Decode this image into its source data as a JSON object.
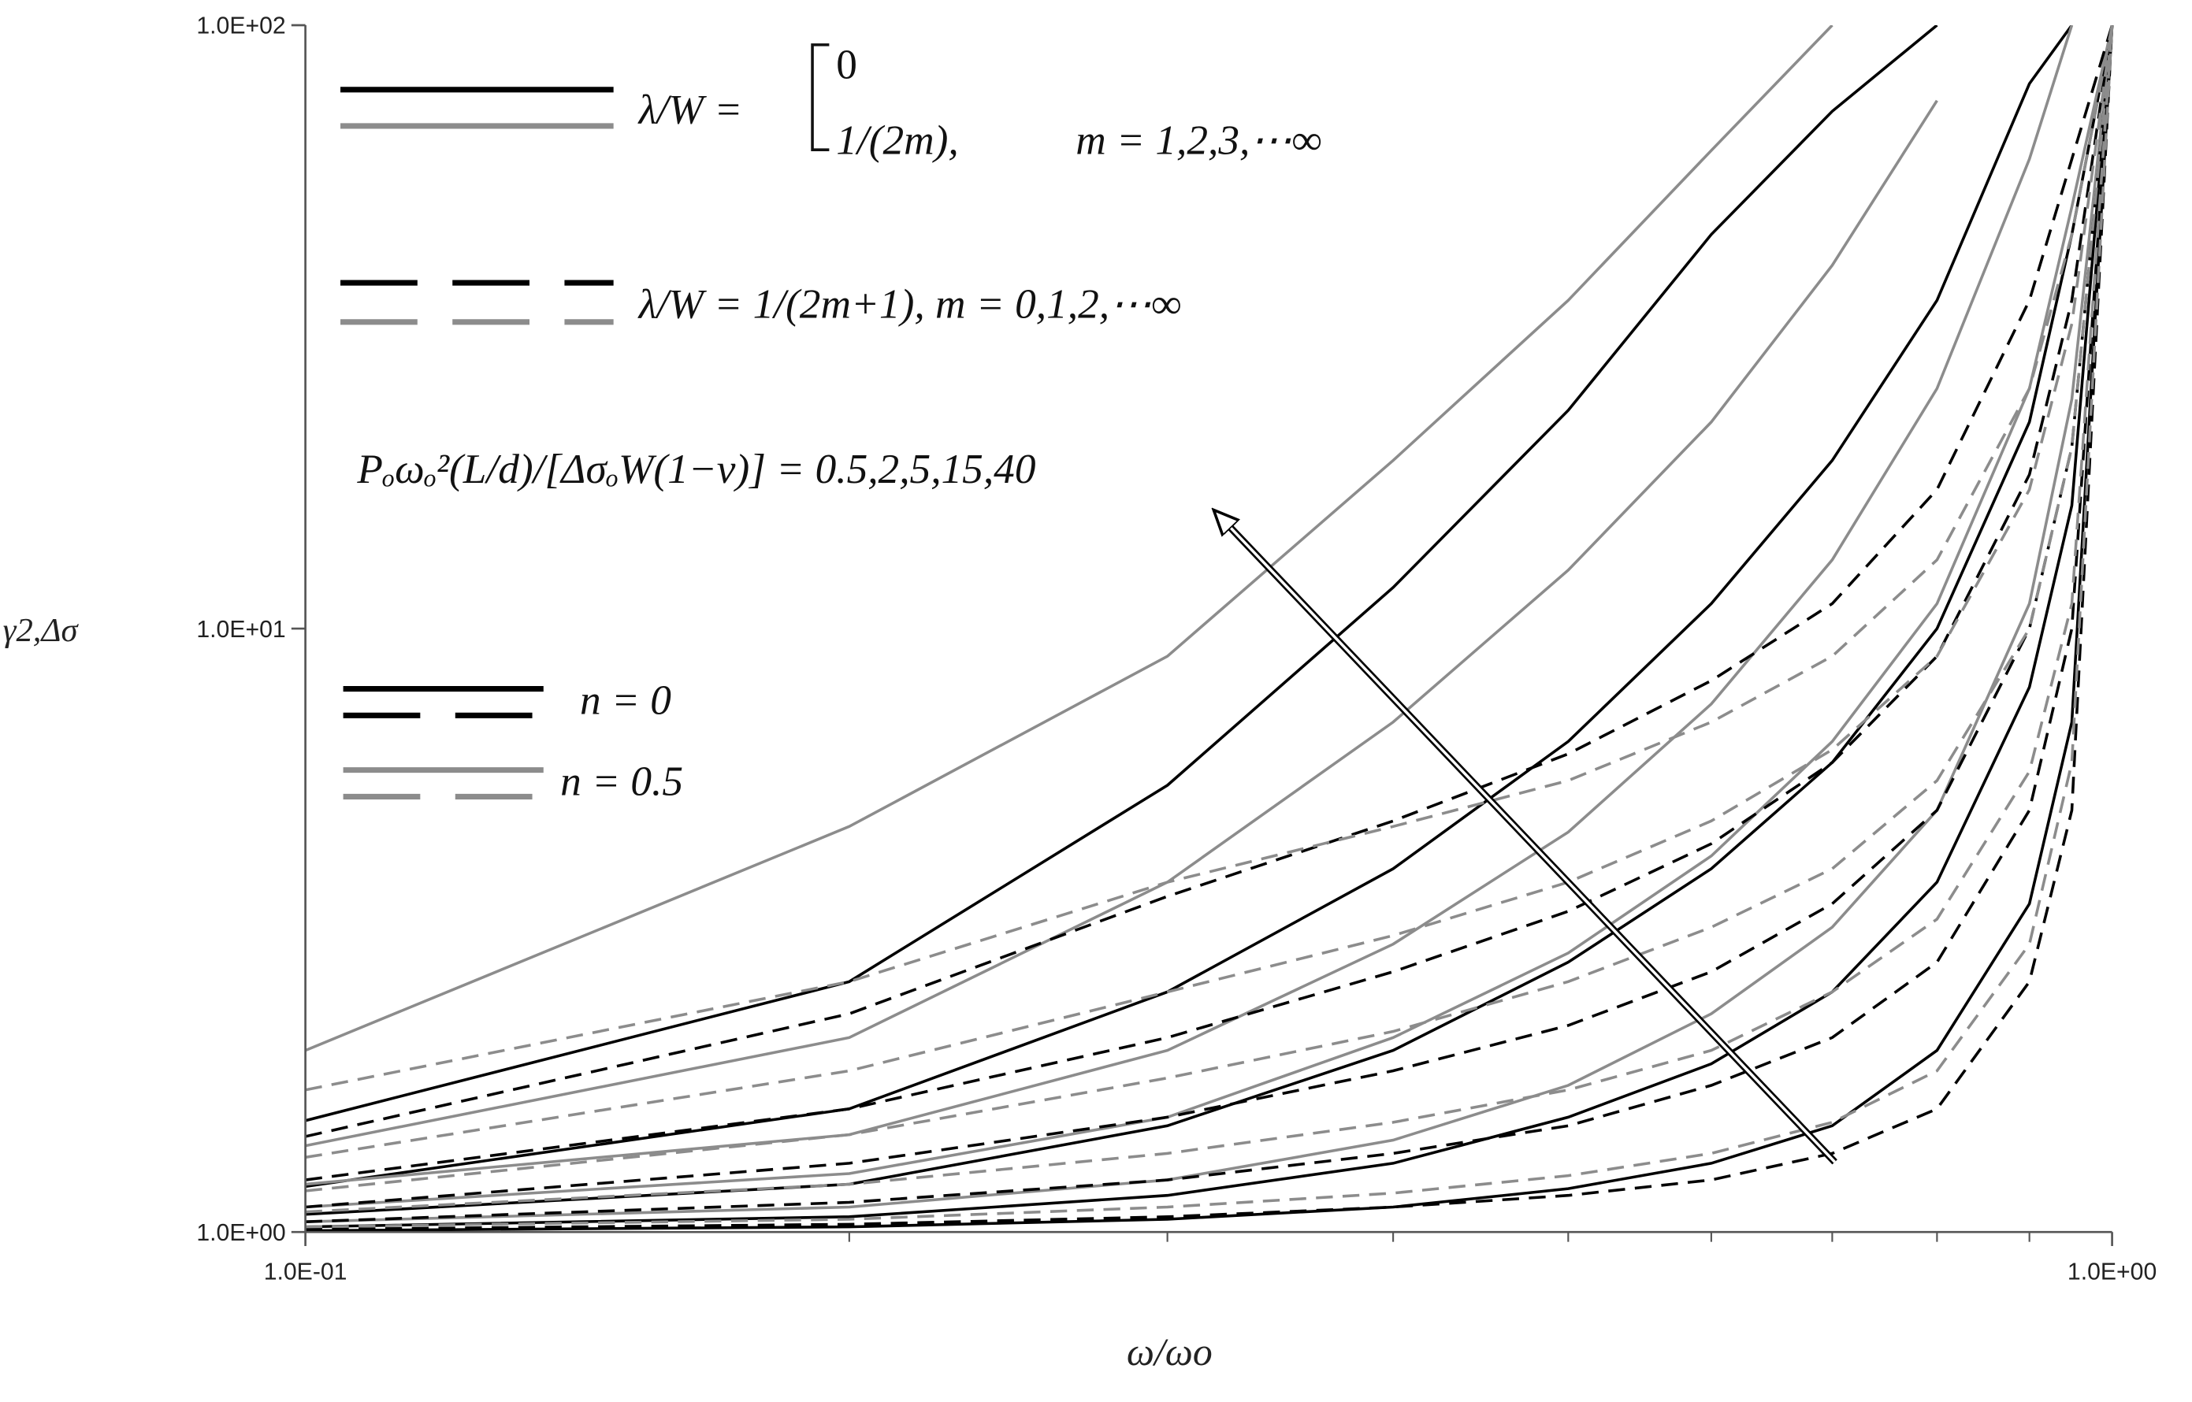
{
  "chart_data": {
    "type": "line",
    "xlabel": "ω/ωo",
    "ylabel": "γ2,Δσ",
    "xscale": "log",
    "yscale": "log",
    "xlim": [
      0.1,
      1
    ],
    "ylim": [
      1,
      100
    ],
    "xticks": [
      {
        "value": 0.1,
        "label": "1.0E-01"
      },
      {
        "value": 1,
        "label": "1.0E+00"
      }
    ],
    "xminor_ticks": [
      0.2,
      0.3,
      0.4,
      0.5,
      0.6,
      0.7,
      0.8,
      0.9
    ],
    "yticks": [
      {
        "value": 1,
        "label": "1.0E+00"
      },
      {
        "value": 10,
        "label": "1.0E+01"
      },
      {
        "value": 100,
        "label": "1.0E+02"
      }
    ],
    "legend": {
      "solid": {
        "label": "λ/W =",
        "case1": "0",
        "case2": "1/(2m),",
        "range": "m = 1,2,3,⋯∞"
      },
      "dashed": {
        "label": "λ/W = 1/(2m+1), m = 0,1,2,⋯∞"
      },
      "black": {
        "label": "n = 0"
      },
      "gray": {
        "label": "n = 0.5"
      }
    },
    "annotation": "Pₒωₒ²(L/d)/[ΔσₒW(1−ν)] = 0.5,2,5,15,40",
    "x": [
      0.1,
      0.2,
      0.3,
      0.4,
      0.5,
      0.6,
      0.7,
      0.8,
      0.9,
      0.95,
      1.0
    ],
    "series": [
      {
        "color": "#000000",
        "dashed": false,
        "values": [
          1.53,
          2.6,
          5.5,
          11.7,
          23,
          45,
          72,
          100,
          null,
          null,
          null
        ]
      },
      {
        "color": "#000000",
        "dashed": false,
        "values": [
          1.19,
          1.6,
          2.5,
          4,
          6.5,
          11,
          19,
          35,
          80,
          100,
          null
        ]
      },
      {
        "color": "#000000",
        "dashed": false,
        "values": [
          1.07,
          1.2,
          1.5,
          2,
          2.8,
          4,
          6,
          10,
          22,
          45,
          100
        ]
      },
      {
        "color": "#000000",
        "dashed": false,
        "values": [
          1.02,
          1.06,
          1.15,
          1.3,
          1.55,
          1.9,
          2.5,
          3.8,
          8,
          16,
          100
        ]
      },
      {
        "color": "#000000",
        "dashed": false,
        "values": [
          1.005,
          1.02,
          1.05,
          1.1,
          1.18,
          1.3,
          1.5,
          2,
          3.5,
          7,
          100
        ]
      },
      {
        "color": "#8c8c8c",
        "dashed": false,
        "values": [
          2.0,
          4.7,
          9,
          19,
          35,
          62,
          100,
          null,
          null,
          null,
          null
        ]
      },
      {
        "color": "#8c8c8c",
        "dashed": false,
        "values": [
          1.39,
          2.1,
          3.8,
          7,
          12.5,
          22,
          40,
          75,
          null,
          null,
          null
        ]
      },
      {
        "color": "#8c8c8c",
        "dashed": false,
        "values": [
          1.2,
          1.45,
          2,
          3,
          4.6,
          7.5,
          13,
          25,
          60,
          100,
          null
        ]
      },
      {
        "color": "#8c8c8c",
        "dashed": false,
        "values": [
          1.1,
          1.25,
          1.55,
          2.1,
          2.9,
          4.2,
          6.5,
          11,
          25,
          50,
          100
        ]
      },
      {
        "color": "#8c8c8c",
        "dashed": false,
        "values": [
          1.04,
          1.1,
          1.22,
          1.42,
          1.75,
          2.3,
          3.2,
          5,
          11,
          24,
          100
        ]
      },
      {
        "color": "#000000",
        "dashed": true,
        "values": [
          1.44,
          2.3,
          3.6,
          4.8,
          6.2,
          8.2,
          11,
          17,
          35,
          60,
          100
        ]
      },
      {
        "color": "#000000",
        "dashed": true,
        "values": [
          1.22,
          1.6,
          2.1,
          2.7,
          3.4,
          4.4,
          6,
          9,
          18,
          35,
          100
        ]
      },
      {
        "color": "#000000",
        "dashed": true,
        "values": [
          1.1,
          1.3,
          1.55,
          1.85,
          2.2,
          2.7,
          3.5,
          5,
          10,
          20,
          100
        ]
      },
      {
        "color": "#000000",
        "dashed": true,
        "values": [
          1.04,
          1.12,
          1.22,
          1.35,
          1.5,
          1.75,
          2.1,
          2.8,
          5,
          10,
          100
        ]
      },
      {
        "color": "#000000",
        "dashed": true,
        "values": [
          1.01,
          1.03,
          1.06,
          1.1,
          1.15,
          1.22,
          1.35,
          1.6,
          2.6,
          5,
          100
        ]
      },
      {
        "color": "#8c8c8c",
        "dashed": true,
        "values": [
          1.72,
          2.6,
          3.8,
          4.7,
          5.6,
          7,
          9,
          13,
          25,
          45,
          100
        ]
      },
      {
        "color": "#8c8c8c",
        "dashed": true,
        "values": [
          1.33,
          1.85,
          2.5,
          3.1,
          3.8,
          4.8,
          6.3,
          9,
          17,
          32,
          100
        ]
      },
      {
        "color": "#8c8c8c",
        "dashed": true,
        "values": [
          1.17,
          1.45,
          1.8,
          2.15,
          2.6,
          3.2,
          4,
          5.6,
          10,
          20,
          100
        ]
      },
      {
        "color": "#8c8c8c",
        "dashed": true,
        "values": [
          1.08,
          1.2,
          1.35,
          1.52,
          1.72,
          2,
          2.5,
          3.3,
          5.8,
          11,
          100
        ]
      },
      {
        "color": "#8c8c8c",
        "dashed": true,
        "values": [
          1.02,
          1.05,
          1.1,
          1.16,
          1.24,
          1.35,
          1.52,
          1.85,
          3,
          6,
          100
        ]
      }
    ]
  }
}
